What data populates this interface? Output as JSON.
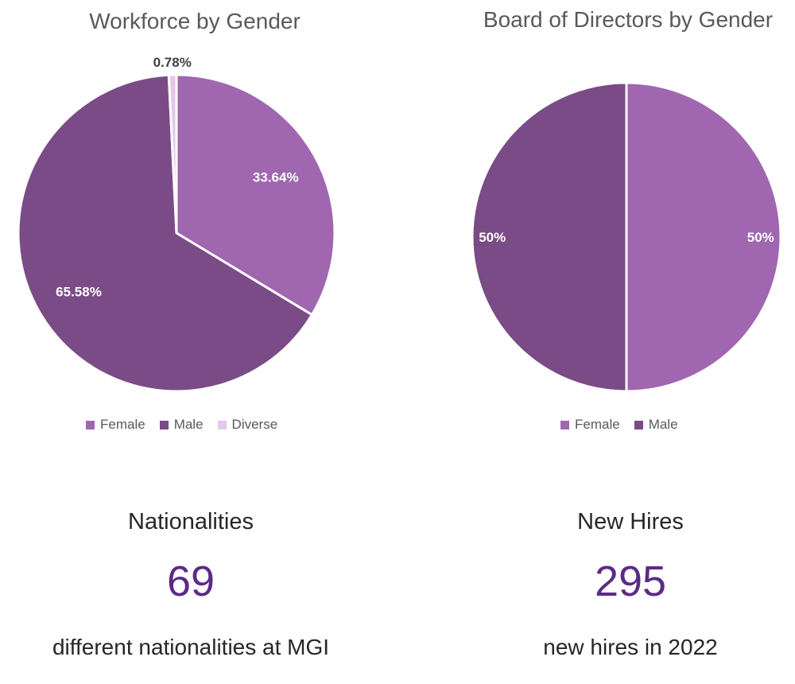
{
  "colors": {
    "female": "#a066b0",
    "male": "#7a4b86",
    "diverse": "#e4c7ea",
    "stat_value": "#5b2a86"
  },
  "chart_data": [
    {
      "type": "pie",
      "title": "Workforce by Gender",
      "categories": [
        "Female",
        "Male",
        "Diverse"
      ],
      "values": [
        33.64,
        65.58,
        0.78
      ],
      "data_labels": [
        "33.64%",
        "65.58%",
        "0.78%"
      ],
      "legend": "bottom"
    },
    {
      "type": "pie",
      "title": "Board of Directors by Gender",
      "categories": [
        "Female",
        "Male"
      ],
      "values": [
        50,
        50
      ],
      "data_labels": [
        "50%",
        "50%"
      ],
      "legend": "bottom"
    }
  ],
  "stats": {
    "nationalities": {
      "heading": "Nationalities",
      "value": "69",
      "caption": "different nationalities at MGI"
    },
    "new_hires": {
      "heading": "New Hires",
      "value": "295",
      "caption": "new hires in 2022"
    }
  }
}
